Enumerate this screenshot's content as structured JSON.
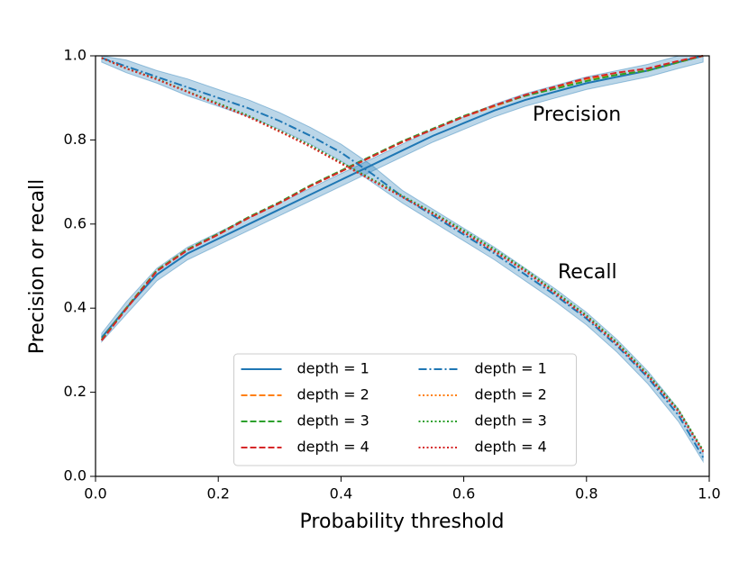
{
  "chart_data": {
    "type": "line",
    "xlabel": "Probability threshold",
    "ylabel": "Precision or recall",
    "annotations": [
      "Precision",
      "Recall"
    ],
    "xlim": [
      0,
      1
    ],
    "ylim": [
      0,
      1
    ],
    "xticks": [
      {
        "value": 0,
        "label": "0.0"
      },
      0.2,
      0.4,
      0.6,
      0.8,
      {
        "value": 1,
        "label": "1.0"
      }
    ],
    "yticks": [
      {
        "value": 0,
        "label": "0.0"
      },
      0.2,
      0.4,
      0.6,
      0.8,
      {
        "value": 1,
        "label": "1.0"
      }
    ],
    "legend": "lower center",
    "x": [
      0.01,
      0.05,
      0.1,
      0.15,
      0.2,
      0.25,
      0.3,
      0.35,
      0.4,
      0.45,
      0.5,
      0.55,
      0.6,
      0.65,
      0.7,
      0.75,
      0.8,
      0.85,
      0.9,
      0.95,
      0.99
    ],
    "series": [
      {
        "name": "depth = 1",
        "color": "#1f77b4",
        "dash": "solid",
        "values": [
          0.33,
          0.4,
          0.48,
          0.53,
          0.565,
          0.6,
          0.635,
          0.67,
          0.705,
          0.74,
          0.775,
          0.81,
          0.84,
          0.87,
          0.895,
          0.915,
          0.935,
          0.95,
          0.965,
          0.985,
          1.0
        ],
        "band": {
          "lower": [
            0.32,
            0.385,
            0.465,
            0.515,
            0.55,
            0.585,
            0.62,
            0.655,
            0.69,
            0.725,
            0.76,
            0.795,
            0.825,
            0.855,
            0.88,
            0.9,
            0.92,
            0.935,
            0.95,
            0.97,
            0.985
          ],
          "upper": [
            0.34,
            0.415,
            0.495,
            0.545,
            0.58,
            0.615,
            0.65,
            0.685,
            0.72,
            0.755,
            0.79,
            0.825,
            0.855,
            0.885,
            0.91,
            0.93,
            0.95,
            0.965,
            0.98,
            1.0,
            1.0
          ]
        }
      },
      {
        "name": "depth = 2",
        "color": "#ff7f0e",
        "dash": "dashed",
        "values": [
          0.325,
          0.4,
          0.49,
          0.54,
          0.575,
          0.615,
          0.65,
          0.69,
          0.725,
          0.76,
          0.795,
          0.825,
          0.855,
          0.88,
          0.905,
          0.925,
          0.945,
          0.955,
          0.965,
          0.985,
          1.0
        ]
      },
      {
        "name": "depth = 3",
        "color": "#2ca02c",
        "dash": "dashed",
        "values": [
          0.325,
          0.4,
          0.49,
          0.54,
          0.577,
          0.617,
          0.652,
          0.692,
          0.727,
          0.762,
          0.797,
          0.827,
          0.857,
          0.882,
          0.905,
          0.922,
          0.94,
          0.955,
          0.965,
          0.985,
          1.0
        ]
      },
      {
        "name": "depth = 4",
        "color": "#d62728",
        "dash": "dashed",
        "values": [
          0.323,
          0.398,
          0.488,
          0.538,
          0.575,
          0.615,
          0.65,
          0.69,
          0.725,
          0.76,
          0.795,
          0.825,
          0.855,
          0.882,
          0.907,
          0.927,
          0.947,
          0.96,
          0.97,
          0.988,
          1.0
        ]
      },
      {
        "name": "depth = 1",
        "color": "#1f77b4",
        "dash": "dashdot",
        "values": [
          0.995,
          0.975,
          0.95,
          0.925,
          0.9,
          0.875,
          0.845,
          0.81,
          0.77,
          0.72,
          0.665,
          0.62,
          0.575,
          0.53,
          0.48,
          0.43,
          0.375,
          0.31,
          0.235,
          0.145,
          0.045
        ],
        "band": {
          "lower": [
            0.985,
            0.96,
            0.935,
            0.905,
            0.88,
            0.855,
            0.825,
            0.79,
            0.75,
            0.7,
            0.65,
            0.605,
            0.56,
            0.515,
            0.465,
            0.415,
            0.36,
            0.295,
            0.22,
            0.13,
            0.035
          ],
          "upper": [
            1.0,
            0.99,
            0.965,
            0.945,
            0.92,
            0.895,
            0.865,
            0.83,
            0.79,
            0.74,
            0.68,
            0.635,
            0.59,
            0.545,
            0.495,
            0.445,
            0.39,
            0.325,
            0.25,
            0.16,
            0.06
          ]
        }
      },
      {
        "name": "depth = 2",
        "color": "#ff7f0e",
        "dash": "dotted",
        "values": [
          0.995,
          0.97,
          0.945,
          0.915,
          0.885,
          0.855,
          0.82,
          0.785,
          0.745,
          0.705,
          0.665,
          0.625,
          0.58,
          0.535,
          0.49,
          0.435,
          0.38,
          0.315,
          0.24,
          0.155,
          0.06
        ]
      },
      {
        "name": "depth = 3",
        "color": "#2ca02c",
        "dash": "dotted",
        "values": [
          0.995,
          0.97,
          0.945,
          0.915,
          0.887,
          0.857,
          0.822,
          0.787,
          0.747,
          0.707,
          0.667,
          0.627,
          0.585,
          0.54,
          0.492,
          0.438,
          0.383,
          0.318,
          0.243,
          0.158,
          0.062
        ]
      },
      {
        "name": "depth = 4",
        "color": "#d62728",
        "dash": "dotted",
        "values": [
          0.995,
          0.97,
          0.944,
          0.914,
          0.884,
          0.854,
          0.82,
          0.784,
          0.744,
          0.704,
          0.664,
          0.624,
          0.58,
          0.535,
          0.488,
          0.434,
          0.379,
          0.314,
          0.239,
          0.154,
          0.058
        ]
      }
    ]
  }
}
